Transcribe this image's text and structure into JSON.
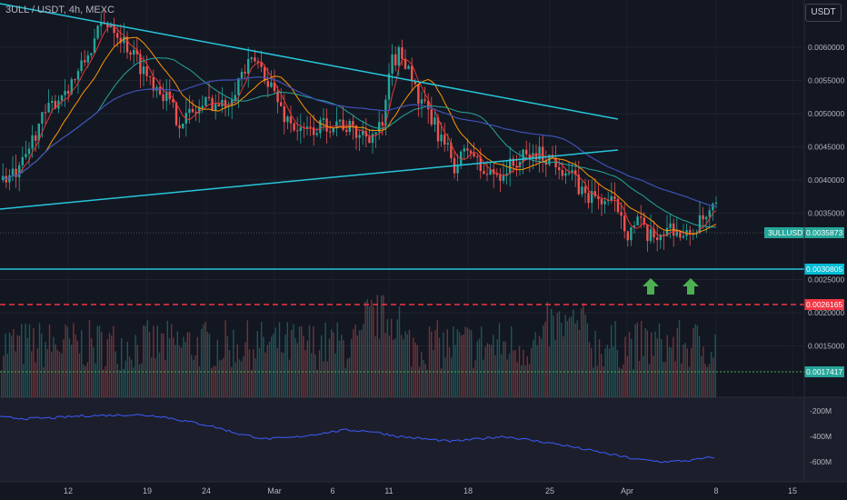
{
  "header": {
    "symbol_title": "3ULL / USDT, 4h, MEXC",
    "currency": "USDT"
  },
  "chart_data": {
    "type": "candlestick",
    "symbol": "3ULL / USDT",
    "interval": "4h",
    "exchange": "MEXC",
    "currency": "USDT",
    "price_axis": {
      "range": [
        0.0014,
        0.0065
      ],
      "ticks": [
        "0.0060000",
        "0.0055000",
        "0.0050000",
        "0.0045000",
        "0.0040000",
        "0.0035000",
        "0.0025000",
        "0.0020000",
        "0.0015000"
      ]
    },
    "price_tags": [
      {
        "label": "3ULLUSDT",
        "value": "0.0035873",
        "color": "#26a69a"
      },
      {
        "label": "",
        "value": "0.0030805",
        "color": "#00bcd4"
      },
      {
        "label": "",
        "value": "0.0026165",
        "color": "#f23645"
      },
      {
        "label": "",
        "value": "0.0017417",
        "color": "#26a69a"
      }
    ],
    "time_axis": [
      "12",
      "19",
      "24",
      "Mar",
      "6",
      "11",
      "18",
      "25",
      "Apr",
      "8",
      "15"
    ],
    "indicator_axis": [
      "-200M",
      "-400M",
      "-600M"
    ],
    "horizontal_levels": [
      {
        "value": 0.0030805,
        "style": "solid",
        "color": "#26c6da"
      },
      {
        "value": 0.0026165,
        "style": "dashed",
        "color": "#f23645"
      },
      {
        "value": 0.0017417,
        "style": "dotted",
        "color": "#4caf50"
      }
    ],
    "trendlines": [
      {
        "name": "upper-channel",
        "from": [
          "day 3",
          0.00668
        ],
        "to": [
          "day 58",
          0.00507
        ],
        "color": "#26c6da"
      },
      {
        "name": "lower-channel",
        "from": [
          "day 3",
          0.00384
        ],
        "to": [
          "day 58",
          0.00468
        ],
        "color": "#26c6da"
      }
    ],
    "overlays": [
      "fast MA (red)",
      "mid MA (orange)",
      "slow MA (teal)",
      "long MA (blue)"
    ],
    "markers": [
      {
        "type": "up-arrow",
        "near": "Apr 3",
        "color": "#4caf50"
      },
      {
        "type": "up-arrow",
        "near": "Apr 6",
        "color": "#4caf50"
      }
    ],
    "series": [
      {
        "name": "price",
        "approx_closes": [
          0.004,
          0.0044,
          0.005,
          0.0052,
          0.0056,
          0.0062,
          0.0063,
          0.006,
          0.0058,
          0.0055,
          0.0052,
          0.005,
          0.0047,
          0.0049,
          0.0052,
          0.005,
          0.0053,
          0.0056,
          0.0057,
          0.0054,
          0.0052,
          0.0049,
          0.0047,
          0.0046,
          0.0048,
          0.0045,
          0.0044,
          0.0045,
          0.0046,
          0.0047,
          0.005,
          0.0058,
          0.0057,
          0.0053,
          0.005,
          0.0048,
          0.0046,
          0.0044,
          0.0042,
          0.004,
          0.0041,
          0.0042,
          0.0043,
          0.0044,
          0.0045,
          0.0046,
          0.0043,
          0.0041,
          0.004,
          0.0038,
          0.0036,
          0.0034,
          0.0031,
          0.0032,
          0.0033,
          0.0032,
          0.0031,
          0.0033,
          0.0034,
          0.0035873
        ]
      },
      {
        "name": "indicator",
        "levels_millions": [
          -250,
          -260,
          -255,
          -240,
          -235,
          -230,
          -240,
          -280,
          -320,
          -380,
          -420,
          -410,
          -380,
          -350,
          -360,
          -400,
          -420,
          -440,
          -420,
          -400,
          -430,
          -460,
          -500,
          -540,
          -580,
          -600,
          -590,
          -560
        ]
      }
    ]
  }
}
